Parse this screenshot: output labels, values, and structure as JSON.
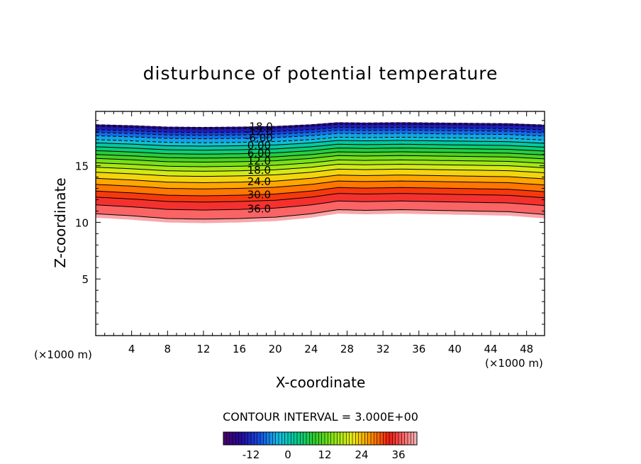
{
  "chart_data": {
    "type": "heatmap",
    "title": "disturbunce of potential temperature",
    "xlabel": "X-coordinate",
    "ylabel": "Z-coordinate",
    "x_unit_label": "(×1000 m)",
    "z_unit_label": "(×1000 m)",
    "xlim": [
      0,
      50
    ],
    "ylim": [
      0,
      19.8
    ],
    "x_ticks": [
      4,
      8,
      12,
      16,
      20,
      24,
      28,
      32,
      36,
      40,
      44,
      48
    ],
    "y_ticks": [
      5,
      10,
      15
    ],
    "contour_interval_label": "CONTOUR INTERVAL = 3.000E+00",
    "contour_interval": 3,
    "contour_labels": [
      "-18.0",
      "-12.0",
      "-6.00",
      "0.00",
      "6.00",
      "12.0",
      "18.0",
      "24.0",
      "30.0",
      "36.0"
    ],
    "levels": [
      -18,
      -15,
      -12,
      -9,
      -6,
      -3,
      0,
      3,
      6,
      9,
      12,
      15,
      18,
      21,
      24,
      27,
      30,
      33,
      36,
      39
    ],
    "level_z_at_x18": [
      18.45,
      18.3,
      18.0,
      17.75,
      17.45,
      17.1,
      16.8,
      16.45,
      16.1,
      15.75,
      15.4,
      15.0,
      14.6,
      14.15,
      13.6,
      13.05,
      12.45,
      11.9,
      11.2,
      10.4
    ],
    "terrain_shift": {
      "x": [
        0,
        4,
        8,
        12,
        16,
        20,
        24,
        27,
        30,
        34,
        38,
        42,
        46,
        50
      ],
      "dz": [
        0.3,
        0.15,
        -0.05,
        -0.1,
        -0.05,
        0.05,
        0.3,
        0.6,
        0.55,
        0.6,
        0.55,
        0.5,
        0.45,
        0.25
      ]
    },
    "colorbar": {
      "range": [
        -21,
        42
      ],
      "tick_labels": [
        "-12",
        "0",
        "12",
        "24",
        "36"
      ],
      "tick_values": [
        -12,
        0,
        12,
        24,
        36
      ]
    }
  }
}
